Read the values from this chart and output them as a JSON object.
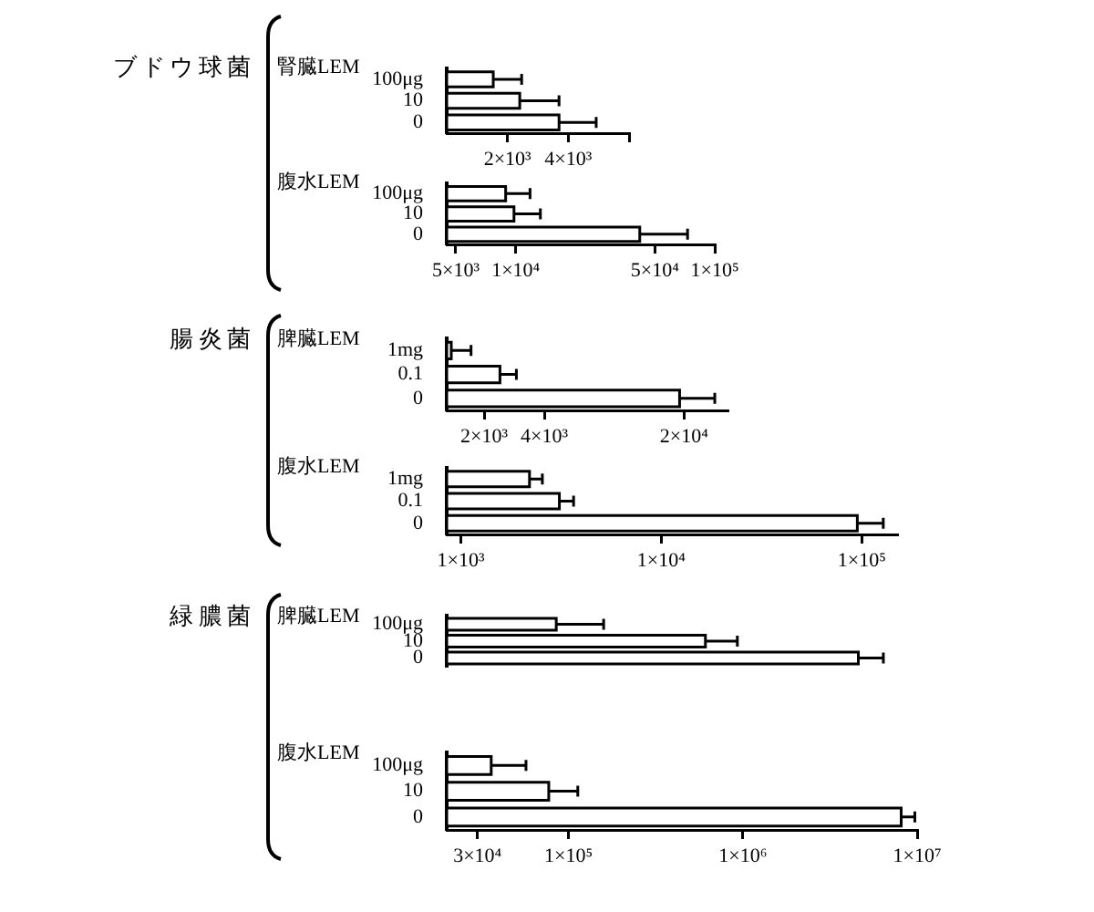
{
  "chart_data": [
    {
      "type": "bar",
      "orientation": "horizontal",
      "title": "ブドウ球菌",
      "ylabel": "腎臓LEM",
      "categories": [
        "100μg",
        "10",
        "0"
      ],
      "values": [
        1700,
        2300,
        3600
      ],
      "errors": [
        [
          1700,
          2350
        ],
        [
          2300,
          3600
        ],
        [
          3600,
          5500
        ]
      ],
      "color": "#ffffff",
      "log": "x",
      "xlim": [
        1000,
        8000
      ],
      "xticks": [
        {
          "value": 2000,
          "label": "2×10³"
        },
        {
          "value": 4000,
          "label": "4×10³"
        },
        {
          "value": 8000,
          "label": null
        }
      ]
    },
    {
      "type": "bar",
      "orientation": "horizontal",
      "ylabel": "腹水LEM",
      "categories": [
        "100μg",
        "10",
        "0"
      ],
      "values": [
        8900,
        9800,
        42000
      ],
      "errors": [
        [
          8900,
          11800
        ],
        [
          9800,
          13300
        ],
        [
          42000,
          73000
        ]
      ],
      "color": "#ffffff",
      "log": "x",
      "xlim": [
        4500,
        100000
      ],
      "xticks": [
        {
          "value": 5000,
          "label": "5×10³"
        },
        {
          "value": 10000,
          "label": "1×10⁴"
        },
        {
          "value": 50000,
          "label": "5×10⁴"
        },
        {
          "value": 100000,
          "label": "1×10⁵"
        }
      ]
    },
    {
      "type": "bar",
      "orientation": "horizontal",
      "title": "腸炎菌",
      "ylabel": "脾臓LEM",
      "categories": [
        "1mg",
        "0.1",
        "0"
      ],
      "values": [
        1370,
        2400,
        19000
      ],
      "errors": [
        [
          1370,
          1720
        ],
        [
          2400,
          2900
        ],
        [
          19000,
          28500
        ]
      ],
      "color": "#ffffff",
      "log": "x",
      "xlim": [
        1300,
        33000
      ],
      "xticks": [
        {
          "value": 2000,
          "label": "2×10³"
        },
        {
          "value": 4000,
          "label": "4×10³"
        },
        {
          "value": 20000,
          "label": "2×10⁴"
        }
      ]
    },
    {
      "type": "bar",
      "orientation": "horizontal",
      "ylabel": "腹水LEM",
      "categories": [
        "1mg",
        "0.1",
        "0"
      ],
      "values": [
        2200,
        3100,
        95000
      ],
      "errors": [
        [
          2200,
          2550
        ],
        [
          3100,
          3650
        ],
        [
          95000,
          128000
        ]
      ],
      "color": "#ffffff",
      "log": "x",
      "xlim": [
        850,
        150000
      ],
      "xticks": [
        {
          "value": 1000,
          "label": "1×10³"
        },
        {
          "value": 10000,
          "label": "1×10⁴"
        },
        {
          "value": 100000,
          "label": "1×10⁵"
        }
      ]
    },
    {
      "type": "bar",
      "orientation": "horizontal",
      "title": "緑膿菌",
      "ylabel": "脾臓LEM",
      "categories": [
        "100μg",
        "10",
        "0"
      ],
      "values": [
        85000,
        610000,
        4600000
      ],
      "errors": [
        [
          85000,
          159000
        ],
        [
          610000,
          930000
        ],
        [
          4600000,
          6400000
        ]
      ],
      "color": "#ffffff",
      "log": "x",
      "xlim": [
        20000,
        10000000
      ],
      "tick_labels": "y"
    },
    {
      "type": "bar",
      "orientation": "horizontal",
      "ylabel": "腹水LEM",
      "categories": [
        "100μg",
        "10",
        "0"
      ],
      "values": [
        36000,
        77000,
        8100000
      ],
      "errors": [
        [
          36000,
          57000
        ],
        [
          77000,
          113000
        ],
        [
          8100000,
          9700000
        ]
      ],
      "color": "#ffffff",
      "log": "x",
      "xlim": [
        20000,
        10000000
      ],
      "xticks": [
        {
          "value": 30000,
          "label": "3×10⁴"
        },
        {
          "value": 100000,
          "label": "1×10⁵"
        },
        {
          "value": 1000000,
          "label": "1×10⁶"
        },
        {
          "value": 10000000,
          "label": "1×10⁷"
        }
      ]
    }
  ]
}
